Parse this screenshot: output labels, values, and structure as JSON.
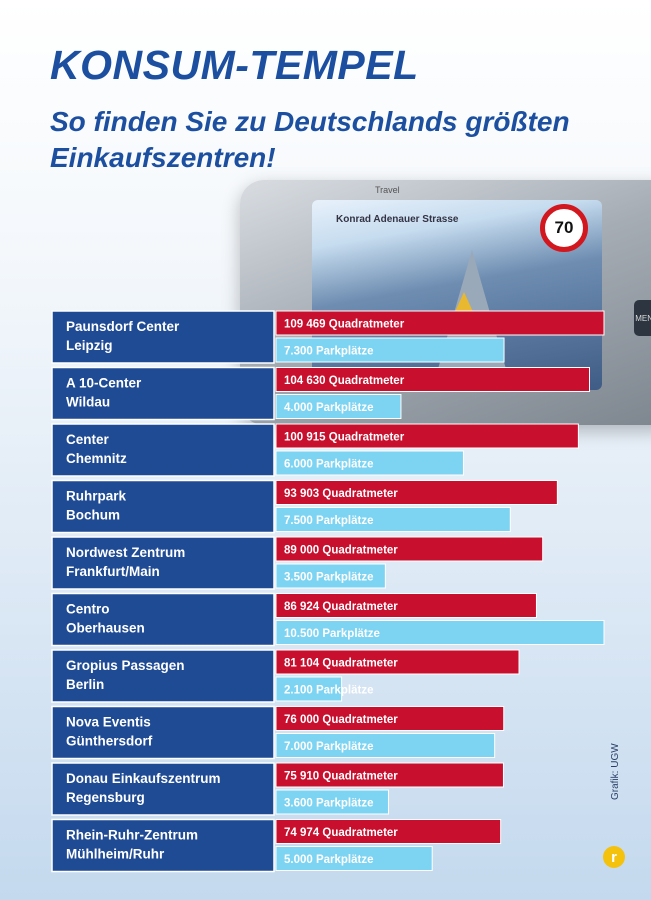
{
  "header": {
    "title": "KONSUM-TEMPEL",
    "subtitle": "So finden Sie zu Deutschlands größten Einkaufszentren!"
  },
  "device": {
    "brand": "Travel",
    "street": "Konrad Adenauer Strasse",
    "speed_limit": "70",
    "side_button": "MENU"
  },
  "credit": "Grafik: UGW",
  "logo_letter": "r",
  "colors": {
    "title": "#1c4fa0",
    "label_background": "#1f4a94",
    "area_bar": "#c8102e",
    "parking_bar": "#7dd3f2",
    "logo": "#f4c20d"
  },
  "chart_data": {
    "type": "bar",
    "orientation": "horizontal",
    "categories": [
      "Paunsdorf Center Leipzig",
      "A 10-Center Wildau",
      "Center Chemnitz",
      "Ruhrpark Bochum",
      "Nordwest Zentrum Frankfurt/Main",
      "Centro Oberhausen",
      "Gropius Passagen Berlin",
      "Nova Eventis Günthersdorf",
      "Donau Einkaufszentrum Regensburg",
      "Rhein-Ruhr-Zentrum Mühlheim/Ruhr"
    ],
    "centers": [
      {
        "name": "Paunsdorf Center",
        "city": "Leipzig",
        "area_label": "109 469 Quadratmeter",
        "parking_label": "7.300 Parkplätze"
      },
      {
        "name": "A 10-Center",
        "city": "Wildau",
        "area_label": "104 630 Quadratmeter",
        "parking_label": "4.000 Parkplätze"
      },
      {
        "name": "Center",
        "city": "Chemnitz",
        "area_label": "100 915 Quadratmeter",
        "parking_label": "6.000 Parkplätze"
      },
      {
        "name": "Ruhrpark",
        "city": "Bochum",
        "area_label": "93 903 Quadratmeter",
        "parking_label": "7.500 Parkplätze"
      },
      {
        "name": "Nordwest Zentrum",
        "city": "Frankfurt/Main",
        "area_label": "89 000 Quadratmeter",
        "parking_label": "3.500 Parkplätze"
      },
      {
        "name": "Centro",
        "city": "Oberhausen",
        "area_label": "86 924 Quadratmeter",
        "parking_label": "10.500 Parkplätze"
      },
      {
        "name": "Gropius Passagen",
        "city": "Berlin",
        "area_label": "81 104 Quadratmeter",
        "parking_label": "2.100 Parkplätze"
      },
      {
        "name": "Nova Eventis",
        "city": "Günthersdorf",
        "area_label": "76 000 Quadratmeter",
        "parking_label": "7.000 Parkplätze"
      },
      {
        "name": "Donau Einkaufszentrum",
        "city": "Regensburg",
        "area_label": "75 910 Quadratmeter",
        "parking_label": "3.600 Parkplätze"
      },
      {
        "name": "Rhein-Ruhr-Zentrum",
        "city": "Mühlheim/Ruhr",
        "area_label": "74 974 Quadratmeter",
        "parking_label": "5.000 Parkplätze"
      }
    ],
    "series": [
      {
        "name": "Quadratmeter",
        "values": [
          109469,
          104630,
          100915,
          93903,
          89000,
          86924,
          81104,
          76000,
          75910,
          74974
        ]
      },
      {
        "name": "Parkplätze",
        "values": [
          7300,
          4000,
          6000,
          7500,
          3500,
          10500,
          2100,
          7000,
          3600,
          5000
        ]
      }
    ],
    "title": "KONSUM-TEMPEL",
    "xlabel": "",
    "ylabel": ""
  }
}
